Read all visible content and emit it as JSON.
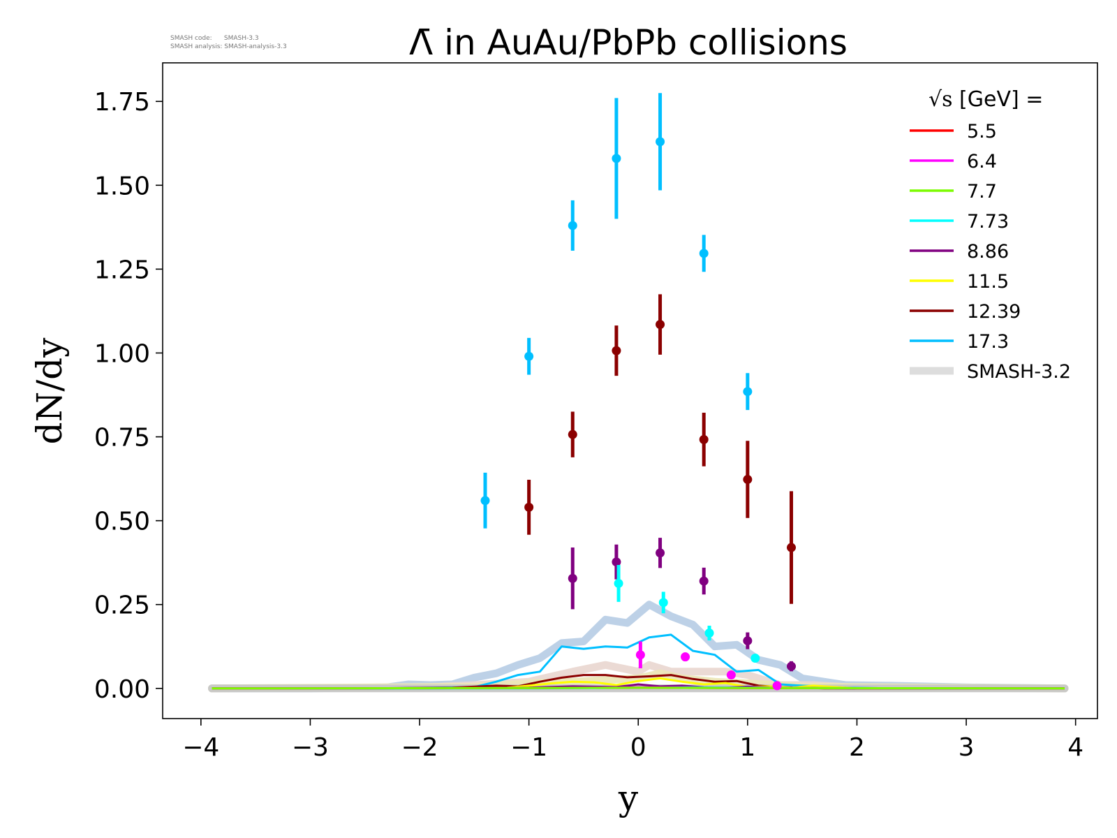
{
  "notes": {
    "code_line": "SMASH code:      SMASH-3.3",
    "analysis_line": "SMASH analysis: SMASH-analysis-3.3"
  },
  "chart_data": {
    "type": "line",
    "title_symbol": "Λ̄",
    "title_text": " in AuAu/PbPb collisions",
    "xlabel": "y",
    "ylabel": "dN/dy",
    "xlim": [
      -4.35,
      4.2
    ],
    "ylim": [
      -0.09,
      1.865
    ],
    "xticks": [
      -4,
      -3,
      -2,
      -1,
      0,
      1,
      2,
      3,
      4
    ],
    "xtick_labels": [
      "−4",
      "−3",
      "−2",
      "−1",
      "0",
      "1",
      "2",
      "3",
      "4"
    ],
    "yticks": [
      0,
      0.25,
      0.5,
      0.75,
      1.0,
      1.25,
      1.5,
      1.75
    ],
    "ytick_labels": [
      "0.00",
      "0.25",
      "0.50",
      "0.75",
      "1.00",
      "1.25",
      "1.50",
      "1.75"
    ],
    "legend": {
      "title_sqrt": "√s",
      "title_rest": "  [GeV] =",
      "placement": "top-right",
      "entries": [
        {
          "label": "5.5",
          "color": "#ff0000"
        },
        {
          "label": "6.4",
          "color": "#ff00ff"
        },
        {
          "label": "7.7",
          "color": "#7cfc00"
        },
        {
          "label": "7.73",
          "color": "#00ffff"
        },
        {
          "label": "8.86",
          "color": "#800080"
        },
        {
          "label": "11.5",
          "color": "#ffff00"
        },
        {
          "label": "12.39",
          "color": "#8b0000"
        },
        {
          "label": "17.3",
          "color": "#00bfff"
        },
        {
          "label": "SMASH-3.2",
          "color": "#dddddd",
          "thick": true
        }
      ]
    },
    "model_curves": [
      {
        "label": "17.3",
        "color": "#00bfff",
        "x": [
          -3.9,
          -3.0,
          -2.3,
          -1.9,
          -1.5,
          -1.3,
          -1.1,
          -0.9,
          -0.7,
          -0.5,
          -0.3,
          -0.1,
          0.1,
          0.3,
          0.5,
          0.7,
          0.9,
          1.1,
          1.3,
          1.5,
          1.9,
          2.3,
          3.0,
          3.9
        ],
        "y": [
          0.0,
          0.0,
          0.0,
          0.002,
          0.004,
          0.02,
          0.04,
          0.05,
          0.125,
          0.118,
          0.125,
          0.122,
          0.152,
          0.16,
          0.112,
          0.1,
          0.05,
          0.055,
          0.012,
          0.008,
          0.002,
          0.0,
          0.0,
          0.0
        ]
      },
      {
        "label": "12.39",
        "color": "#8b0000",
        "x": [
          -3.9,
          -2.5,
          -1.7,
          -1.3,
          -1.1,
          -0.9,
          -0.7,
          -0.5,
          -0.3,
          -0.1,
          0.1,
          0.3,
          0.5,
          0.7,
          0.9,
          1.1,
          1.3,
          1.7,
          2.5,
          3.9
        ],
        "y": [
          0.0,
          0.0,
          0.002,
          0.008,
          0.006,
          0.02,
          0.032,
          0.04,
          0.04,
          0.033,
          0.036,
          0.04,
          0.028,
          0.02,
          0.022,
          0.008,
          0.004,
          0.0,
          0.0,
          0.0
        ]
      },
      {
        "label": "11.5",
        "color": "#ffff00",
        "x": [
          -3.9,
          -2.0,
          -1.2,
          -1.0,
          -0.8,
          -0.6,
          -0.4,
          -0.2,
          0.0,
          0.2,
          0.4,
          0.6,
          0.8,
          1.0,
          1.2,
          1.4,
          1.6,
          2.0,
          3.9
        ],
        "y": [
          0.0,
          0.0,
          0.002,
          0.008,
          0.015,
          0.02,
          0.018,
          0.01,
          0.022,
          0.03,
          0.02,
          0.012,
          0.016,
          0.004,
          0.006,
          0.002,
          0.008,
          0.0,
          0.0
        ]
      },
      {
        "label": "8.86",
        "color": "#800080",
        "x": [
          -3.9,
          -2.0,
          -1.0,
          -0.6,
          -0.2,
          0.0,
          0.2,
          0.4,
          0.6,
          0.8,
          1.0,
          1.2,
          2.0,
          3.9
        ],
        "y": [
          0.0,
          0.0,
          0.002,
          0.006,
          0.004,
          0.012,
          0.006,
          0.008,
          0.003,
          0.002,
          0.005,
          0.002,
          0.0,
          0.0
        ]
      },
      {
        "label": "7.73",
        "color": "#00ffff",
        "x": [
          -3.9,
          -1.0,
          0.0,
          0.5,
          1.0,
          1.5,
          3.9
        ],
        "y": [
          0.0,
          0.0,
          0.002,
          0.003,
          0.002,
          0.001,
          0.0
        ]
      },
      {
        "label": "6.4",
        "color": "#ff00ff",
        "x": [
          -3.9,
          -1.0,
          0.0,
          1.0,
          3.9
        ],
        "y": [
          0.0,
          0.001,
          0.003,
          0.001,
          0.0
        ]
      },
      {
        "label": "5.5",
        "color": "#ff0000",
        "x": [
          -3.9,
          -1.0,
          0.0,
          1.0,
          3.9
        ],
        "y": [
          0.0,
          0.001,
          0.002,
          0.001,
          0.0
        ]
      },
      {
        "label": "7.7",
        "color": "#7cfc00",
        "x": [
          -3.9,
          -1.0,
          0.0,
          1.0,
          3.9
        ],
        "y": [
          0.0,
          0.001,
          0.002,
          0.001,
          0.0
        ]
      }
    ],
    "smash32_curves": [
      {
        "color": "#b9cfe6",
        "x": [
          -3.9,
          -3.0,
          -2.3,
          -2.1,
          -1.9,
          -1.7,
          -1.5,
          -1.3,
          -1.1,
          -0.9,
          -0.7,
          -0.5,
          -0.3,
          -0.1,
          0.1,
          0.3,
          0.5,
          0.7,
          0.9,
          1.1,
          1.3,
          1.5,
          1.9,
          2.3,
          3.0,
          3.9
        ],
        "y": [
          0.0,
          0.0,
          0.003,
          0.012,
          0.01,
          0.012,
          0.032,
          0.045,
          0.07,
          0.09,
          0.135,
          0.14,
          0.205,
          0.195,
          0.25,
          0.215,
          0.19,
          0.125,
          0.13,
          0.085,
          0.07,
          0.03,
          0.01,
          0.008,
          0.003,
          0.0
        ]
      },
      {
        "color": "#ead8d2",
        "x": [
          -3.9,
          -2.0,
          -1.5,
          -1.0,
          -0.6,
          -0.3,
          0.0,
          0.1,
          0.3,
          0.6,
          0.8,
          1.0,
          1.3,
          1.6,
          2.0,
          3.9
        ],
        "y": [
          0.0,
          0.002,
          0.01,
          0.02,
          0.05,
          0.07,
          0.05,
          0.07,
          0.05,
          0.05,
          0.05,
          0.04,
          0.01,
          0.01,
          0.002,
          0.0
        ]
      },
      {
        "color": "#ece7b8",
        "x": [
          -3.9,
          -1.5,
          -1.0,
          -0.6,
          -0.3,
          0.0,
          0.2,
          0.4,
          0.7,
          1.0,
          1.5,
          3.9
        ],
        "y": [
          0.0,
          0.005,
          0.015,
          0.02,
          0.025,
          0.03,
          0.045,
          0.03,
          0.02,
          0.015,
          0.005,
          0.0
        ]
      },
      {
        "color": "#c7c7c7",
        "x": [
          -3.9,
          3.9
        ],
        "y": [
          0.0,
          0.0
        ]
      }
    ],
    "data_points": [
      {
        "label": "17.3",
        "color": "#00bfff",
        "points": [
          {
            "x": -1.4,
            "y": 0.56,
            "err": 0.083
          },
          {
            "x": -1.0,
            "y": 0.99,
            "err": 0.055
          },
          {
            "x": -0.6,
            "y": 1.38,
            "err": 0.075
          },
          {
            "x": -0.2,
            "y": 1.58,
            "err": 0.18
          },
          {
            "x": 0.2,
            "y": 1.63,
            "err": 0.145
          },
          {
            "x": 0.6,
            "y": 1.297,
            "err": 0.055
          },
          {
            "x": 1.0,
            "y": 0.885,
            "err": 0.055
          }
        ]
      },
      {
        "label": "12.39",
        "color": "#8b0000",
        "points": [
          {
            "x": -1.0,
            "y": 0.54,
            "err": 0.082
          },
          {
            "x": -0.6,
            "y": 0.757,
            "err": 0.068
          },
          {
            "x": -0.2,
            "y": 1.007,
            "err": 0.075
          },
          {
            "x": 0.2,
            "y": 1.085,
            "err": 0.09
          },
          {
            "x": 0.6,
            "y": 0.742,
            "err": 0.08
          },
          {
            "x": 1.0,
            "y": 0.623,
            "err": 0.115
          },
          {
            "x": 1.4,
            "y": 0.42,
            "err": 0.168
          }
        ]
      },
      {
        "label": "8.86",
        "color": "#800080",
        "points": [
          {
            "x": -0.6,
            "y": 0.328,
            "err": 0.092
          },
          {
            "x": -0.2,
            "y": 0.377,
            "err": 0.052
          },
          {
            "x": 0.2,
            "y": 0.404,
            "err": 0.045
          },
          {
            "x": 0.6,
            "y": 0.32,
            "err": 0.04
          },
          {
            "x": 1.0,
            "y": 0.142,
            "err": 0.025
          },
          {
            "x": 1.4,
            "y": 0.066,
            "err": 0.015
          }
        ]
      },
      {
        "label": "7.73",
        "color": "#00ffff",
        "points": [
          {
            "x": -0.18,
            "y": 0.313,
            "err": 0.055
          },
          {
            "x": 0.23,
            "y": 0.256,
            "err": 0.032
          },
          {
            "x": 0.65,
            "y": 0.165,
            "err": 0.022
          },
          {
            "x": 1.07,
            "y": 0.09,
            "err": 0.012
          }
        ]
      },
      {
        "label": "6.4",
        "color": "#ff00ff",
        "points": [
          {
            "x": 0.02,
            "y": 0.1,
            "err": 0.04
          },
          {
            "x": 0.43,
            "y": 0.094,
            "err": 0.013
          },
          {
            "x": 0.85,
            "y": 0.04,
            "err": 0.006
          },
          {
            "x": 1.27,
            "y": 0.008,
            "err": 0.003
          }
        ]
      }
    ]
  }
}
